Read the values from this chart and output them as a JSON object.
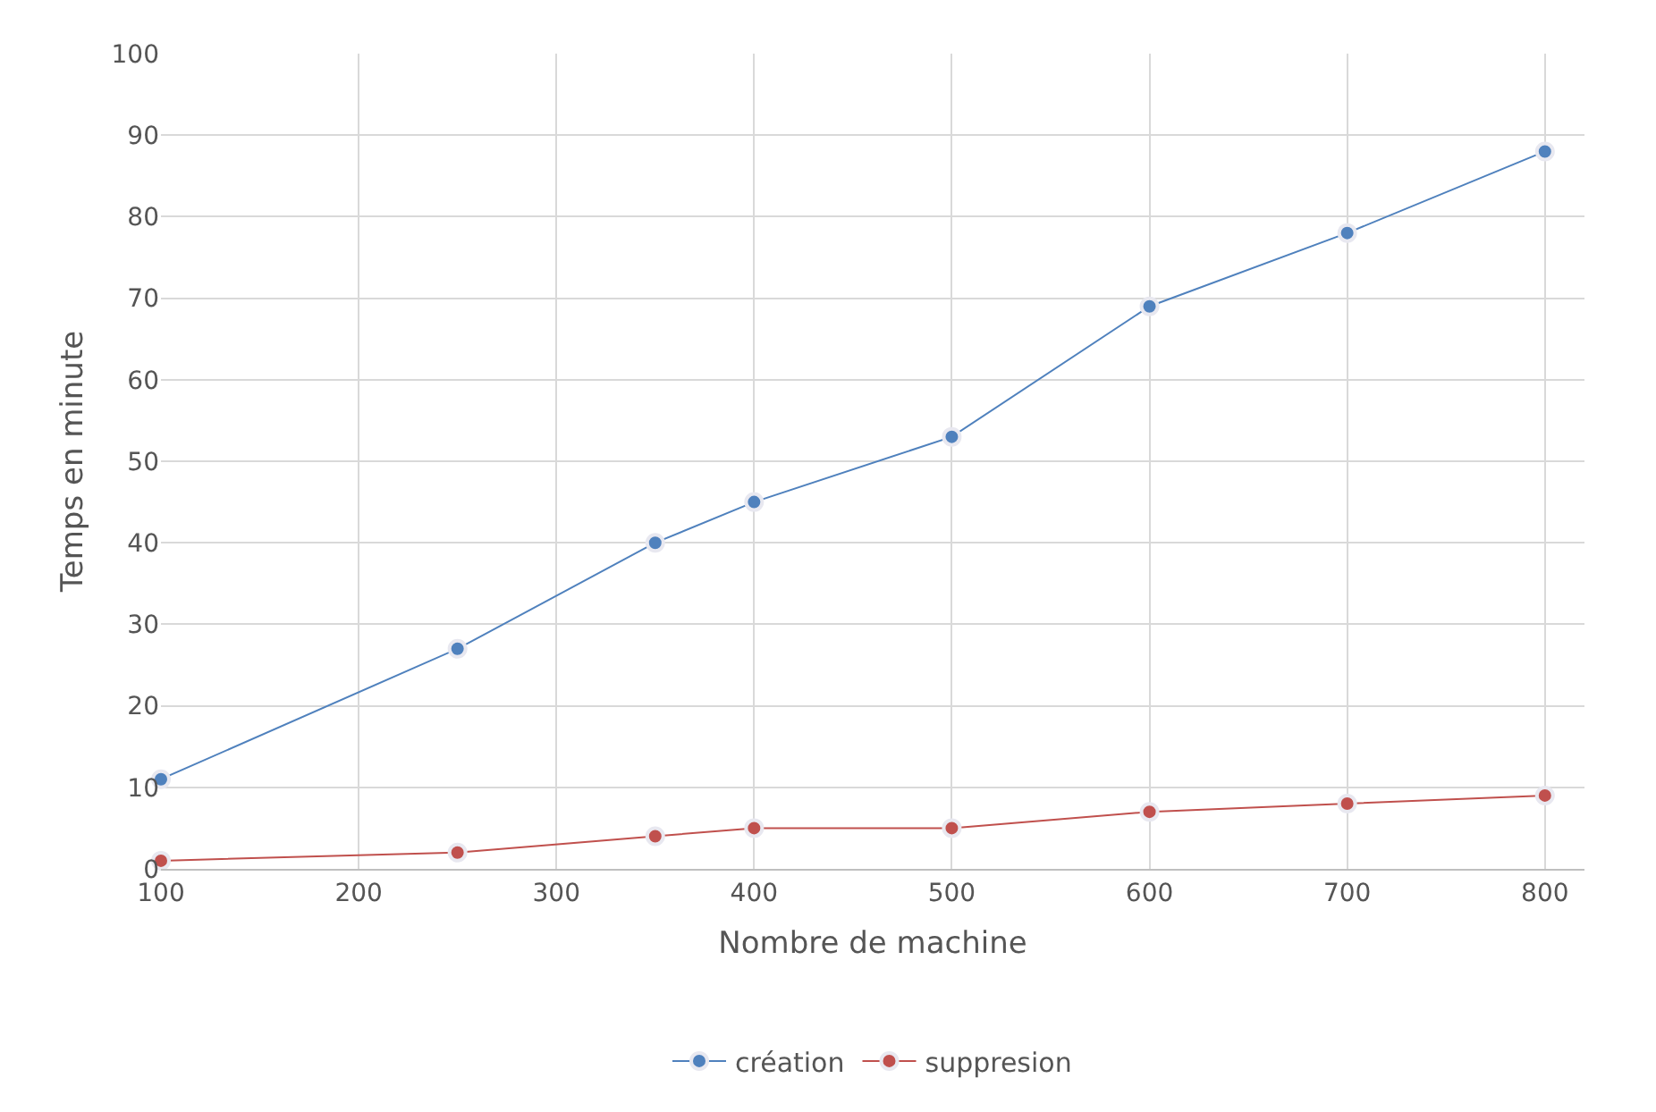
{
  "chart_data": {
    "type": "line",
    "xlabel": "Nombre de machine",
    "ylabel": "Temps en minute",
    "x": [
      100,
      250,
      350,
      400,
      500,
      600,
      700,
      800
    ],
    "series": [
      {
        "name": "création",
        "color": "#4f81bd",
        "values": [
          11,
          27,
          40,
          45,
          53,
          69,
          78,
          88
        ]
      },
      {
        "name": "suppresion",
        "color": "#c0504d",
        "values": [
          1,
          2,
          4,
          5,
          5,
          7,
          8,
          9
        ]
      }
    ],
    "xlim": [
      100,
      820
    ],
    "xticks": [
      100,
      200,
      300,
      400,
      500,
      600,
      700,
      800
    ],
    "ylim": [
      0,
      100
    ],
    "yticks": [
      0,
      10,
      20,
      30,
      40,
      50,
      60,
      70,
      80,
      90,
      100
    ],
    "grid": true,
    "legend": "bottom",
    "marker": "circle",
    "line_style": "solid"
  }
}
